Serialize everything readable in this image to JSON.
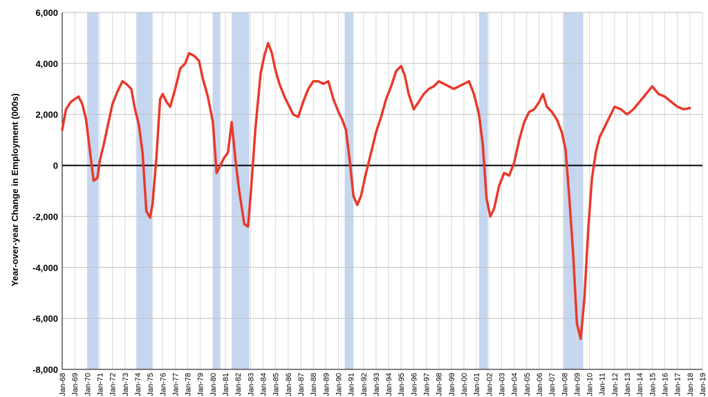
{
  "chart_data": {
    "type": "line",
    "title": "",
    "xlabel": "",
    "ylabel": "Year-over-year Change in Employment (000s)",
    "ylim": [
      -8000,
      6000
    ],
    "xlim": [
      1968.0,
      2019.0
    ],
    "grid": true,
    "yticks": [
      -8000,
      -6000,
      -4000,
      -2000,
      0,
      2000,
      4000,
      6000
    ],
    "ytick_labels": [
      "-8,000",
      "-6,000",
      "-4,000",
      "-2,000",
      "0",
      "2,000",
      "4,000",
      "6,000"
    ],
    "xtick_labels": [
      "Jan-68",
      "Jan-69",
      "Jan-70",
      "Jan-71",
      "Jan-72",
      "Jan-73",
      "Jan-74",
      "Jan-75",
      "Jan-76",
      "Jan-77",
      "Jan-78",
      "Jan-79",
      "Jan-80",
      "Jan-81",
      "Jan-82",
      "Jan-83",
      "Jan-84",
      "Jan-85",
      "Jan-86",
      "Jan-87",
      "Jan-88",
      "Jan-89",
      "Jan-90",
      "Jan-91",
      "Jan-92",
      "Jan-93",
      "Jan-94",
      "Jan-95",
      "Jan-96",
      "Jan-97",
      "Jan-98",
      "Jan-99",
      "Jan-00",
      "Jan-01",
      "Jan-02",
      "Jan-03",
      "Jan-04",
      "Jan-05",
      "Jan-06",
      "Jan-07",
      "Jan-08",
      "Jan-09",
      "Jan-10",
      "Jan-11",
      "Jan-12",
      "Jan-13",
      "Jan-14",
      "Jan-15",
      "Jan-16",
      "Jan-17",
      "Jan-18",
      "Jan-19"
    ],
    "recessions": [
      {
        "start": 1970.0,
        "end": 1970.9
      },
      {
        "start": 1973.9,
        "end": 1975.2
      },
      {
        "start": 1980.0,
        "end": 1980.6
      },
      {
        "start": 1981.5,
        "end": 1982.9
      },
      {
        "start": 1990.5,
        "end": 1991.2
      },
      {
        "start": 2001.2,
        "end": 2001.9
      },
      {
        "start": 2007.9,
        "end": 2009.5
      }
    ],
    "series": [
      {
        "color": "#e8392b",
        "x": [
          1968.0,
          1968.3,
          1968.7,
          1969.0,
          1969.3,
          1969.6,
          1969.9,
          1970.2,
          1970.5,
          1970.8,
          1971.0,
          1971.3,
          1971.6,
          1972.0,
          1972.4,
          1972.8,
          1973.1,
          1973.5,
          1973.8,
          1974.1,
          1974.4,
          1974.7,
          1975.0,
          1975.2,
          1975.5,
          1975.8,
          1976.0,
          1976.3,
          1976.6,
          1977.0,
          1977.4,
          1977.8,
          1978.1,
          1978.5,
          1978.9,
          1979.2,
          1979.6,
          1980.0,
          1980.3,
          1980.6,
          1980.9,
          1981.2,
          1981.5,
          1981.8,
          1982.1,
          1982.5,
          1982.8,
          1983.0,
          1983.4,
          1983.8,
          1984.1,
          1984.4,
          1984.7,
          1985.0,
          1985.3,
          1985.7,
          1986.0,
          1986.4,
          1986.8,
          1987.2,
          1987.6,
          1988.0,
          1988.4,
          1988.8,
          1989.2,
          1989.6,
          1990.0,
          1990.3,
          1990.6,
          1990.9,
          1991.2,
          1991.5,
          1991.8,
          1992.2,
          1992.6,
          1993.0,
          1993.4,
          1993.8,
          1994.2,
          1994.6,
          1995.0,
          1995.3,
          1995.6,
          1996.0,
          1996.4,
          1996.8,
          1997.2,
          1997.6,
          1998.0,
          1998.4,
          1998.8,
          1999.2,
          1999.6,
          2000.0,
          2000.4,
          2000.8,
          2001.2,
          2001.5,
          2001.8,
          2002.1,
          2002.4,
          2002.8,
          2003.2,
          2003.6,
          2004.0,
          2004.4,
          2004.8,
          2005.2,
          2005.6,
          2006.0,
          2006.3,
          2006.6,
          2007.0,
          2007.4,
          2007.8,
          2008.1,
          2008.4,
          2008.7,
          2009.0,
          2009.3,
          2009.6,
          2009.9,
          2010.2,
          2010.5,
          2010.8,
          2011.1,
          2011.5,
          2012.0,
          2012.5,
          2013.0,
          2013.5,
          2014.0,
          2014.5,
          2015.0,
          2015.5,
          2016.0,
          2016.5,
          2017.0,
          2017.5,
          2018.0
        ],
        "values": [
          1400,
          2200,
          2500,
          2600,
          2700,
          2400,
          1800,
          600,
          -600,
          -500,
          200,
          800,
          1500,
          2400,
          2900,
          3300,
          3200,
          3000,
          2200,
          1600,
          500,
          -1800,
          -2050,
          -1500,
          300,
          2600,
          2800,
          2500,
          2300,
          3000,
          3800,
          4000,
          4400,
          4300,
          4100,
          3400,
          2700,
          1700,
          -300,
          0,
          300,
          500,
          1700,
          200,
          -1000,
          -2300,
          -2400,
          -1200,
          1500,
          3600,
          4300,
          4800,
          4400,
          3700,
          3200,
          2700,
          2400,
          2000,
          1900,
          2500,
          3000,
          3300,
          3300,
          3200,
          3300,
          2600,
          2100,
          1800,
          1400,
          200,
          -1200,
          -1550,
          -1200,
          -300,
          500,
          1300,
          1900,
          2600,
          3100,
          3700,
          3900,
          3500,
          2800,
          2200,
          2500,
          2800,
          3000,
          3100,
          3300,
          3200,
          3100,
          3000,
          3100,
          3200,
          3300,
          2800,
          2000,
          800,
          -1300,
          -2000,
          -1700,
          -800,
          -300,
          -400,
          100,
          1000,
          1700,
          2100,
          2200,
          2500,
          2800,
          2300,
          2100,
          1800,
          1300,
          600,
          -1300,
          -3500,
          -6200,
          -6800,
          -5200,
          -2500,
          -500,
          500,
          1100,
          1400,
          1800,
          2300,
          2200,
          2000,
          2200,
          2500,
          2800,
          3100,
          2800,
          2700,
          2500,
          2300,
          2200,
          2250
        ]
      }
    ]
  }
}
